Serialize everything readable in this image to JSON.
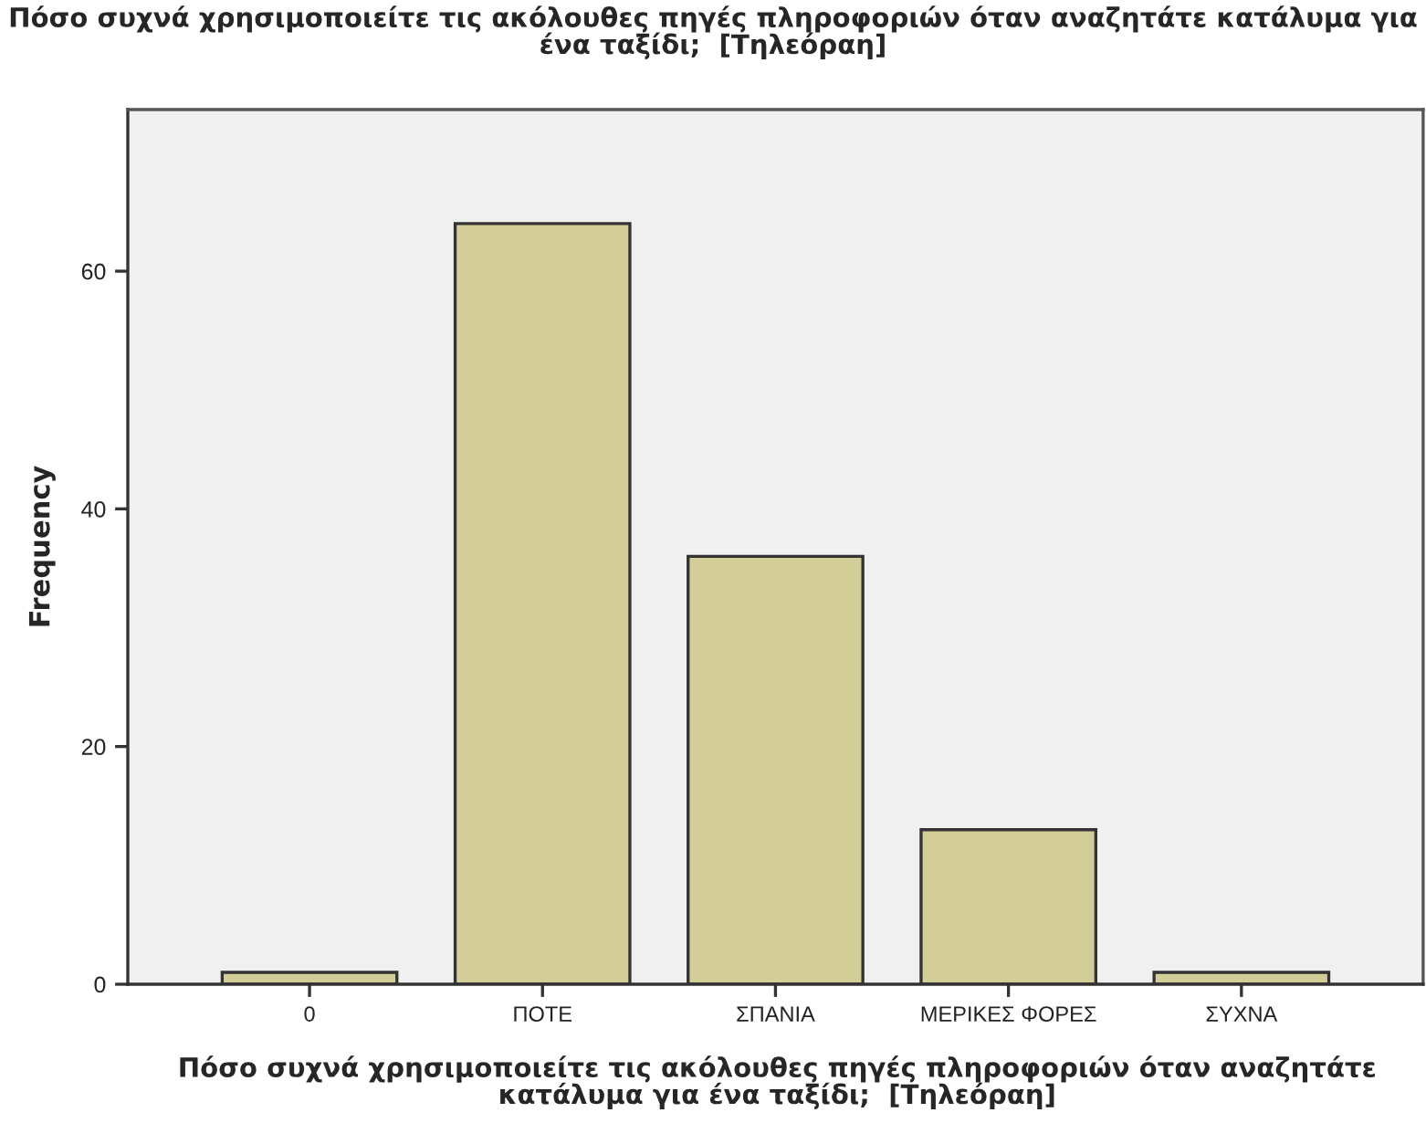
{
  "chart_data": {
    "type": "bar",
    "title": "Πόσο συχνά χρησιμοποιείτε τις ακόλουθες πηγές πληροφοριών όταν αναζητάτε κατάλυμα για ένα ταξίδι;  [Τηλεόραη]",
    "xlabel": "Πόσο συχνά χρησιμοποιείτε τις ακόλουθες πηγές πληροφοριών όταν αναζητάτε κατάλυμα για ένα ταξίδι;  [Τηλεόραη]",
    "ylabel": "Frequency",
    "categories": [
      "0",
      "ΠΟΤΕ",
      "ΣΠΑΝΙΑ",
      "ΜΕΡΙΚΕΣ ΦΟΡΕΣ",
      "ΣΥΧΝΑ"
    ],
    "values": [
      1,
      64,
      36,
      13,
      1
    ],
    "color": "#d3ce97",
    "ylim": [
      0,
      73.6
    ],
    "yticks": [
      0,
      20,
      40,
      60
    ],
    "grid": false
  }
}
